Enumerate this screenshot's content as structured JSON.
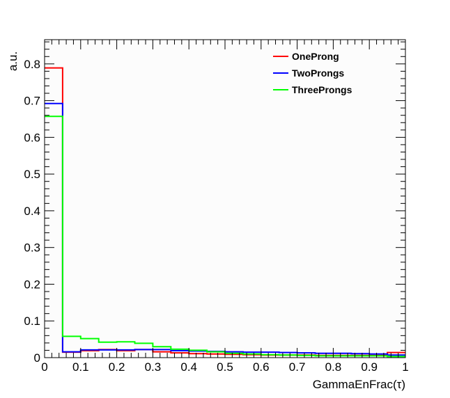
{
  "chart_data": {
    "type": "line",
    "title": "",
    "xlabel": "GammaEnFrac(τ)",
    "ylabel": "a.u.",
    "xlim": [
      0,
      1
    ],
    "ylim": [
      0,
      0.866
    ],
    "grid": false,
    "legend_position": "top-right",
    "x_tick_labels": [
      "0",
      "0.1",
      "0.2",
      "0.3",
      "0.4",
      "0.5",
      "0.6",
      "0.7",
      "0.8",
      "0.9",
      "1"
    ],
    "y_tick_labels": [
      "0",
      "0.1",
      "0.2",
      "0.3",
      "0.4",
      "0.5",
      "0.6",
      "0.7",
      "0.8"
    ],
    "bin_edges": [
      0,
      0.05,
      0.1,
      0.15,
      0.2,
      0.25,
      0.3,
      0.35,
      0.4,
      0.45,
      0.5,
      0.55,
      0.6,
      0.65,
      0.7,
      0.75,
      0.8,
      0.85,
      0.9,
      0.95,
      1.0
    ],
    "series": [
      {
        "name": "OneProng",
        "color": "#ff0000",
        "values": [
          0.789,
          0.015,
          0.019,
          0.022,
          0.019,
          0.022,
          0.016,
          0.013,
          0.011,
          0.01,
          0.009,
          0.008,
          0.007,
          0.007,
          0.007,
          0.006,
          0.006,
          0.006,
          0.006,
          0.014
        ]
      },
      {
        "name": "TwoProngs",
        "color": "#0000ff",
        "values": [
          0.692,
          0.016,
          0.021,
          0.021,
          0.021,
          0.022,
          0.022,
          0.019,
          0.018,
          0.017,
          0.016,
          0.015,
          0.015,
          0.014,
          0.013,
          0.012,
          0.012,
          0.011,
          0.01,
          0.007
        ]
      },
      {
        "name": "ThreeProngs",
        "color": "#00ff00",
        "values": [
          0.657,
          0.058,
          0.052,
          0.042,
          0.043,
          0.039,
          0.03,
          0.023,
          0.02,
          0.016,
          0.012,
          0.01,
          0.008,
          0.007,
          0.006,
          0.005,
          0.005,
          0.005,
          0.005,
          0.003
        ]
      }
    ]
  }
}
